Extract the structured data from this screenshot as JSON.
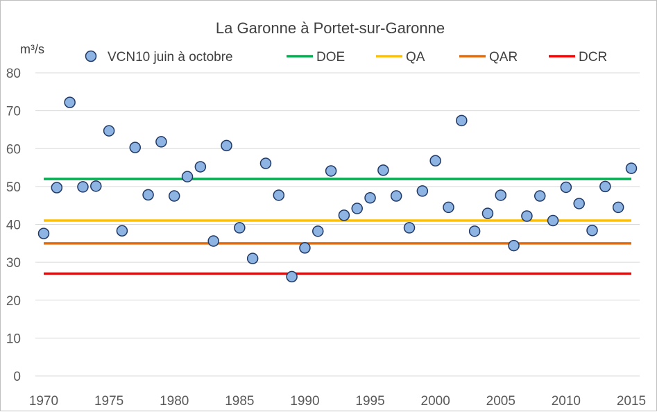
{
  "chart_data": {
    "type": "scatter",
    "title": "La Garonne à Portet-sur-Garonne",
    "ylabel": "m³/s",
    "xlabel": "",
    "xlim": [
      1970,
      2015
    ],
    "ylim": [
      0,
      80
    ],
    "x_ticks": [
      1970,
      1975,
      1980,
      1985,
      1990,
      1995,
      2000,
      2005,
      2010,
      2015
    ],
    "y_ticks": [
      0,
      10,
      20,
      30,
      40,
      50,
      60,
      70,
      80
    ],
    "grid": "horizontal",
    "legend_position": "top",
    "series": [
      {
        "name": "VCN10 juin à octobre",
        "kind": "scatter",
        "color": "#8eb4e3",
        "edge_color": "#1f3864",
        "x": [
          1970,
          1971,
          1972,
          1973,
          1974,
          1975,
          1976,
          1977,
          1978,
          1979,
          1980,
          1981,
          1982,
          1983,
          1984,
          1985,
          1986,
          1987,
          1988,
          1989,
          1990,
          1991,
          1992,
          1993,
          1994,
          1995,
          1996,
          1997,
          1998,
          1999,
          2000,
          2001,
          2002,
          2003,
          2004,
          2005,
          2006,
          2007,
          2008,
          2009,
          2010,
          2011,
          2012,
          2013,
          2014,
          2015
        ],
        "y": [
          37.6,
          49.7,
          72.2,
          49.9,
          50.1,
          64.7,
          38.3,
          60.3,
          47.8,
          61.8,
          47.5,
          52.6,
          55.2,
          35.6,
          60.8,
          39.1,
          31.0,
          56.1,
          47.7,
          26.2,
          33.8,
          38.2,
          54.1,
          42.4,
          44.2,
          47.0,
          54.3,
          47.5,
          39.1,
          48.8,
          56.8,
          44.5,
          67.4,
          38.2,
          42.9,
          47.7,
          34.4,
          42.2,
          47.5,
          41.0,
          49.8,
          45.5,
          38.4,
          50.0,
          44.5,
          54.8
        ]
      },
      {
        "name": "DOE",
        "kind": "hline",
        "value": 52,
        "color": "#00b050"
      },
      {
        "name": "QA",
        "kind": "hline",
        "value": 41,
        "color": "#ffc000"
      },
      {
        "name": "QAR",
        "kind": "hline",
        "value": 35,
        "color": "#e46c0a"
      },
      {
        "name": "DCR",
        "kind": "hline",
        "value": 27,
        "color": "#ff0000"
      }
    ]
  }
}
